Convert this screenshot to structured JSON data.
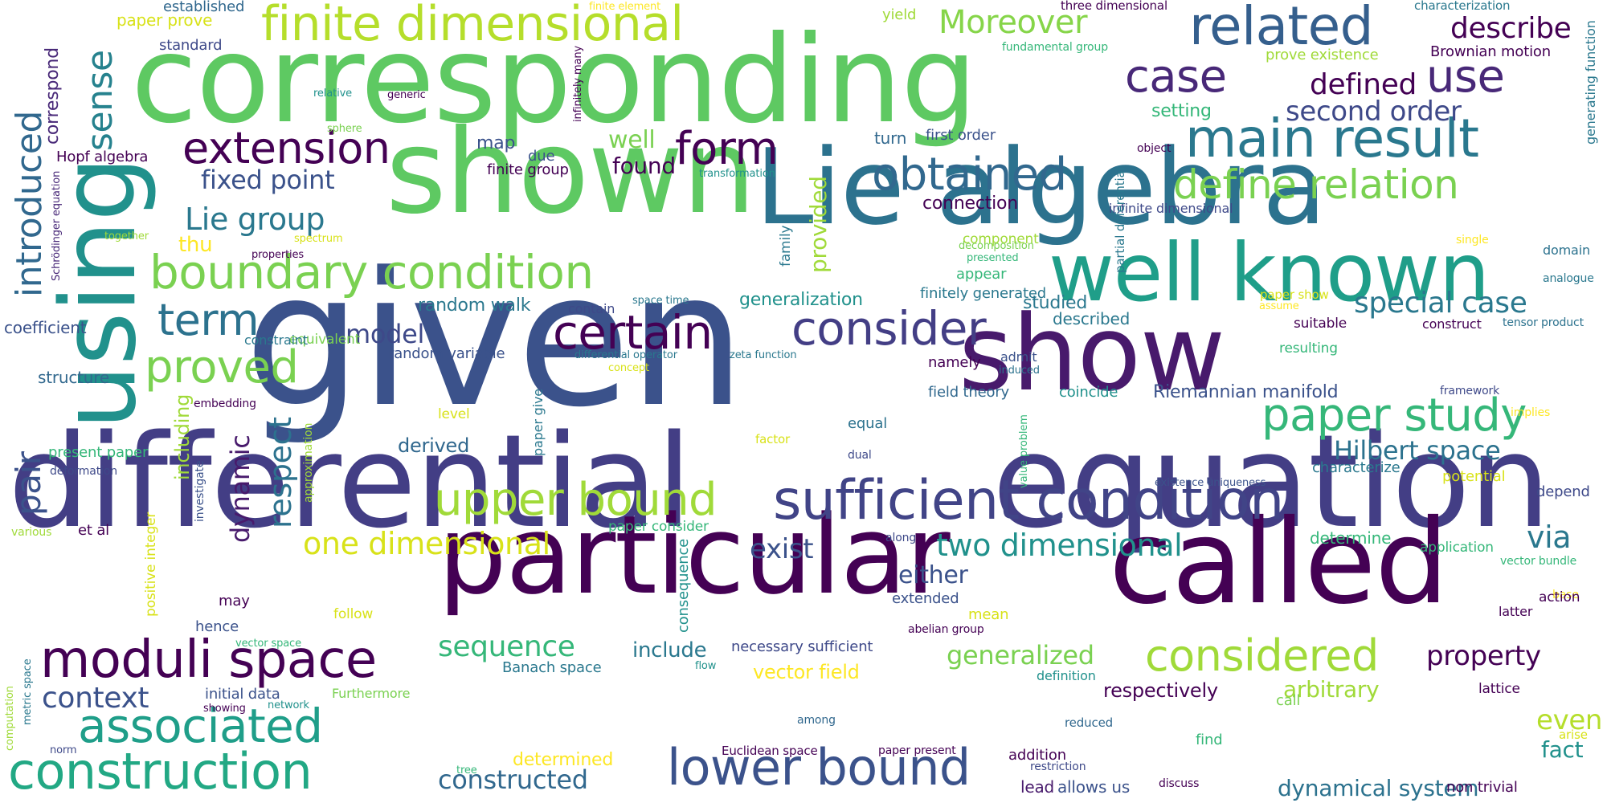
{
  "palette": {
    "deep_purple": "#440154",
    "indigo": "#482878",
    "slate_blue": "#3e4989",
    "steel_blue": "#31688e",
    "teal": "#26828e",
    "sea_green": "#1f9e89",
    "green": "#35b779",
    "light_green": "#6ece58",
    "lime": "#b5de2b",
    "yellow": "#fde725"
  },
  "words": [
    {
      "text": "given",
      "color": "#3b528b"
    },
    {
      "text": "differential",
      "color": "#433e85"
    },
    {
      "text": "equation",
      "color": "#433e85"
    },
    {
      "text": "corresponding",
      "color": "#5ec962"
    },
    {
      "text": "shown",
      "color": "#5ec962"
    },
    {
      "text": "particular",
      "color": "#440154"
    },
    {
      "text": "called",
      "color": "#440154"
    },
    {
      "text": "Lie algebra",
      "color": "#2c728e"
    },
    {
      "text": "show",
      "color": "#481a6c"
    },
    {
      "text": "using",
      "color": "#21918c"
    },
    {
      "text": "well known",
      "color": "#1f9e89"
    },
    {
      "text": "finite dimensional",
      "color": "#b5de2b"
    },
    {
      "text": "sufficient condition",
      "color": "#414487"
    },
    {
      "text": "boundary condition",
      "color": "#7ad151"
    },
    {
      "text": "moduli space",
      "color": "#440154"
    },
    {
      "text": "related",
      "color": "#355f8d"
    },
    {
      "text": "main result",
      "color": "#2a788e"
    },
    {
      "text": "construction",
      "color": "#22a884"
    },
    {
      "text": "associated",
      "color": "#1f9e89"
    },
    {
      "text": "lower bound",
      "color": "#3b528b"
    },
    {
      "text": "certain",
      "color": "#440154"
    },
    {
      "text": "consider",
      "color": "#433e85"
    },
    {
      "text": "upper bound",
      "color": "#a0da39"
    },
    {
      "text": "paper study",
      "color": "#35b779"
    },
    {
      "text": "considered",
      "color": "#a0da39"
    },
    {
      "text": "obtained",
      "color": "#31688e"
    },
    {
      "text": "define relation",
      "color": "#7ad151"
    },
    {
      "text": "extension",
      "color": "#440154"
    },
    {
      "text": "proved",
      "color": "#7ad151"
    },
    {
      "text": "form",
      "color": "#440154"
    },
    {
      "text": "case",
      "color": "#482878"
    },
    {
      "text": "use",
      "color": "#482878"
    },
    {
      "text": "Moreover",
      "color": "#86d549"
    },
    {
      "text": "introduced",
      "color": "#31688e"
    },
    {
      "text": "two dimensional",
      "color": "#21918c"
    },
    {
      "text": "one dimensional",
      "color": "#d8e219"
    },
    {
      "text": "term",
      "color": "#2c728e"
    },
    {
      "text": "special case",
      "color": "#2a788e"
    },
    {
      "text": "Lie group",
      "color": "#2a788e"
    },
    {
      "text": "sense",
      "color": "#26828e"
    },
    {
      "text": "describe",
      "color": "#440154"
    },
    {
      "text": "defined",
      "color": "#440154"
    },
    {
      "text": "second order",
      "color": "#3e4989"
    },
    {
      "text": "fixed point",
      "color": "#3b528b"
    },
    {
      "text": "sequence",
      "color": "#35b779"
    },
    {
      "text": "Hilbert space",
      "color": "#2c728e"
    },
    {
      "text": "pair",
      "color": "#3b528b"
    },
    {
      "text": "respect",
      "color": "#2c728e"
    },
    {
      "text": "dynamic",
      "color": "#481a6c"
    },
    {
      "text": "context",
      "color": "#3b528b"
    },
    {
      "text": "property",
      "color": "#440154"
    },
    {
      "text": "generalized",
      "color": "#7ad151"
    },
    {
      "text": "via",
      "color": "#2a788e"
    },
    {
      "text": "exist",
      "color": "#3b528b"
    },
    {
      "text": "either",
      "color": "#3b528b"
    },
    {
      "text": "model",
      "color": "#3e4989"
    },
    {
      "text": "include",
      "color": "#2a788e"
    },
    {
      "text": "arbitrary",
      "color": "#a0da39"
    },
    {
      "text": "even",
      "color": "#b5de2b"
    },
    {
      "text": "fact",
      "color": "#21918c"
    },
    {
      "text": "dynamical system",
      "color": "#2c728e"
    },
    {
      "text": "found",
      "color": "#440154"
    },
    {
      "text": "well",
      "color": "#7ad151"
    },
    {
      "text": "provided",
      "color": "#a0da39"
    },
    {
      "text": "connection",
      "color": "#440154"
    },
    {
      "text": "generalization",
      "color": "#21918c"
    },
    {
      "text": "studied",
      "color": "#2a788e"
    },
    {
      "text": "described",
      "color": "#2a788e"
    },
    {
      "text": "vector field",
      "color": "#fde725"
    },
    {
      "text": "constructed",
      "color": "#31688e"
    },
    {
      "text": "determined",
      "color": "#fde725"
    },
    {
      "text": "respectively",
      "color": "#440154"
    },
    {
      "text": "Riemannian manifold",
      "color": "#3b528b"
    },
    {
      "text": "random walk",
      "color": "#2a788e"
    },
    {
      "text": "random variable",
      "color": "#3b528b"
    },
    {
      "text": "derived",
      "color": "#31688e"
    },
    {
      "text": "including",
      "color": "#a0da39"
    },
    {
      "text": "present paper",
      "color": "#35b779"
    },
    {
      "text": "coefficient",
      "color": "#3b528b"
    },
    {
      "text": "structure",
      "color": "#31688e"
    },
    {
      "text": "Hopf algebra",
      "color": "#440154"
    },
    {
      "text": "correspond",
      "color": "#482878"
    },
    {
      "text": "thu",
      "color": "#fde725"
    },
    {
      "text": "map",
      "color": "#3b528b"
    },
    {
      "text": "due",
      "color": "#3b528b"
    },
    {
      "text": "finite group",
      "color": "#440154"
    },
    {
      "text": "standard",
      "color": "#3e4989"
    },
    {
      "text": "paper prove",
      "color": "#d8e219"
    },
    {
      "text": "established",
      "color": "#31688e"
    },
    {
      "text": "first order",
      "color": "#3b528b"
    },
    {
      "text": "turn",
      "color": "#31688e"
    },
    {
      "text": "setting",
      "color": "#35b779"
    },
    {
      "text": "yield",
      "color": "#a0da39"
    },
    {
      "text": "three dimensional",
      "color": "#440154"
    },
    {
      "text": "characterization",
      "color": "#2a788e"
    },
    {
      "text": "Brownian motion",
      "color": "#440154"
    },
    {
      "text": "prove existence",
      "color": "#a0da39"
    },
    {
      "text": "generating function",
      "color": "#2a788e"
    },
    {
      "text": "fundamental group",
      "color": "#35b779"
    },
    {
      "text": "object",
      "color": "#440154"
    },
    {
      "text": "infinite dimensional",
      "color": "#3e4989"
    },
    {
      "text": "partial differential",
      "color": "#2a788e"
    },
    {
      "text": "component",
      "color": "#a0da39"
    },
    {
      "text": "appear",
      "color": "#35b779"
    },
    {
      "text": "finitely generated",
      "color": "#2a788e"
    },
    {
      "text": "domain",
      "color": "#2c728e"
    },
    {
      "text": "analogue",
      "color": "#2a788e"
    },
    {
      "text": "single",
      "color": "#fde725"
    },
    {
      "text": "suitable",
      "color": "#440154"
    },
    {
      "text": "construct",
      "color": "#440154"
    },
    {
      "text": "tensor product",
      "color": "#2c728e"
    },
    {
      "text": "resulting",
      "color": "#35b779"
    },
    {
      "text": "namely",
      "color": "#440154"
    },
    {
      "text": "admit",
      "color": "#3b528b"
    },
    {
      "text": "induced",
      "color": "#2c728e"
    },
    {
      "text": "field theory",
      "color": "#31688e"
    },
    {
      "text": "coincide",
      "color": "#21918c"
    },
    {
      "text": "framework",
      "color": "#3e4989"
    },
    {
      "text": "implies",
      "color": "#fde725"
    },
    {
      "text": "equal",
      "color": "#2c728e"
    },
    {
      "text": "dual",
      "color": "#3e4989"
    },
    {
      "text": "factor",
      "color": "#d8e219"
    },
    {
      "text": "value problem",
      "color": "#35b779"
    },
    {
      "text": "existence uniqueness",
      "color": "#3b528b"
    },
    {
      "text": "characterize",
      "color": "#2a788e"
    },
    {
      "text": "potential",
      "color": "#d8e219"
    },
    {
      "text": "depend",
      "color": "#3e4989"
    },
    {
      "text": "determine",
      "color": "#35b779"
    },
    {
      "text": "application",
      "color": "#35b779"
    },
    {
      "text": "vector bundle",
      "color": "#35b779"
    },
    {
      "text": "base",
      "color": "#fde725"
    },
    {
      "text": "action",
      "color": "#440154"
    },
    {
      "text": "latter",
      "color": "#440154"
    },
    {
      "text": "along",
      "color": "#3e4989"
    },
    {
      "text": "extended",
      "color": "#3b528b"
    },
    {
      "text": "mean",
      "color": "#d8e219"
    },
    {
      "text": "abelian group",
      "color": "#440154"
    },
    {
      "text": "necessary sufficient",
      "color": "#3e4989"
    },
    {
      "text": "Banach space",
      "color": "#2a788e"
    },
    {
      "text": "flow",
      "color": "#21918c"
    },
    {
      "text": "consequence",
      "color": "#21918c"
    },
    {
      "text": "definition",
      "color": "#21918c"
    },
    {
      "text": "call",
      "color": "#7ad151"
    },
    {
      "text": "lattice",
      "color": "#440154"
    },
    {
      "text": "arise",
      "color": "#d8e219"
    },
    {
      "text": "find",
      "color": "#35b779"
    },
    {
      "text": "reduced",
      "color": "#31688e"
    },
    {
      "text": "addition",
      "color": "#440154"
    },
    {
      "text": "restriction",
      "color": "#3e4989"
    },
    {
      "text": "lead",
      "color": "#481a6c"
    },
    {
      "text": "allows us",
      "color": "#3b528b"
    },
    {
      "text": "discuss",
      "color": "#440154"
    },
    {
      "text": "non trivial",
      "color": "#440154"
    },
    {
      "text": "Euclidean space",
      "color": "#440154"
    },
    {
      "text": "paper present",
      "color": "#440154"
    },
    {
      "text": "among",
      "color": "#31688e"
    },
    {
      "text": "tree",
      "color": "#35b779"
    },
    {
      "text": "initial data",
      "color": "#3b528b"
    },
    {
      "text": "Furthermore",
      "color": "#7ad151"
    },
    {
      "text": "network",
      "color": "#21918c"
    },
    {
      "text": "showing",
      "color": "#440154"
    },
    {
      "text": "computation",
      "color": "#a0da39"
    },
    {
      "text": "metric space",
      "color": "#2a788e"
    },
    {
      "text": "norm",
      "color": "#3e4989"
    },
    {
      "text": "may",
      "color": "#440154"
    },
    {
      "text": "hence",
      "color": "#3b528b"
    },
    {
      "text": "follow",
      "color": "#d8e219"
    },
    {
      "text": "vector space",
      "color": "#35b779"
    },
    {
      "text": "positive integer",
      "color": "#d8e219"
    },
    {
      "text": "various",
      "color": "#a0da39"
    },
    {
      "text": "et al",
      "color": "#440154"
    },
    {
      "text": "deformation",
      "color": "#3e4989"
    },
    {
      "text": "approximation",
      "color": "#a0da39"
    },
    {
      "text": "investigate",
      "color": "#3b528b"
    },
    {
      "text": "embedding",
      "color": "#440154"
    },
    {
      "text": "level",
      "color": "#d8e219"
    },
    {
      "text": "paper give",
      "color": "#2a788e"
    },
    {
      "text": "equivalent",
      "color": "#7ad151"
    },
    {
      "text": "constraint",
      "color": "#2a788e"
    },
    {
      "text": "spectrum",
      "color": "#d8e219"
    },
    {
      "text": "properties",
      "color": "#440154"
    },
    {
      "text": "together",
      "color": "#a0da39"
    },
    {
      "text": "Schrödinger equation",
      "color": "#482878"
    },
    {
      "text": "contain",
      "color": "#3e4989"
    },
    {
      "text": "space time",
      "color": "#2a788e"
    },
    {
      "text": "differential operator",
      "color": "#2a788e"
    },
    {
      "text": "zeta function",
      "color": "#2a788e"
    },
    {
      "text": "concept",
      "color": "#d8e219"
    },
    {
      "text": "paper consider",
      "color": "#35b779"
    },
    {
      "text": "family",
      "color": "#2a788e"
    },
    {
      "text": "presented",
      "color": "#35b779"
    },
    {
      "text": "decomposition",
      "color": "#7ad151"
    },
    {
      "text": "transformation",
      "color": "#21918c"
    },
    {
      "text": "relative",
      "color": "#21918c"
    },
    {
      "text": "generic",
      "color": "#440154"
    },
    {
      "text": "sphere",
      "color": "#7ad151"
    },
    {
      "text": "infinitely many",
      "color": "#440154"
    },
    {
      "text": "finite element",
      "color": "#fde725"
    },
    {
      "text": "paper show",
      "color": "#d8e219"
    },
    {
      "text": "assume",
      "color": "#fde725"
    }
  ]
}
